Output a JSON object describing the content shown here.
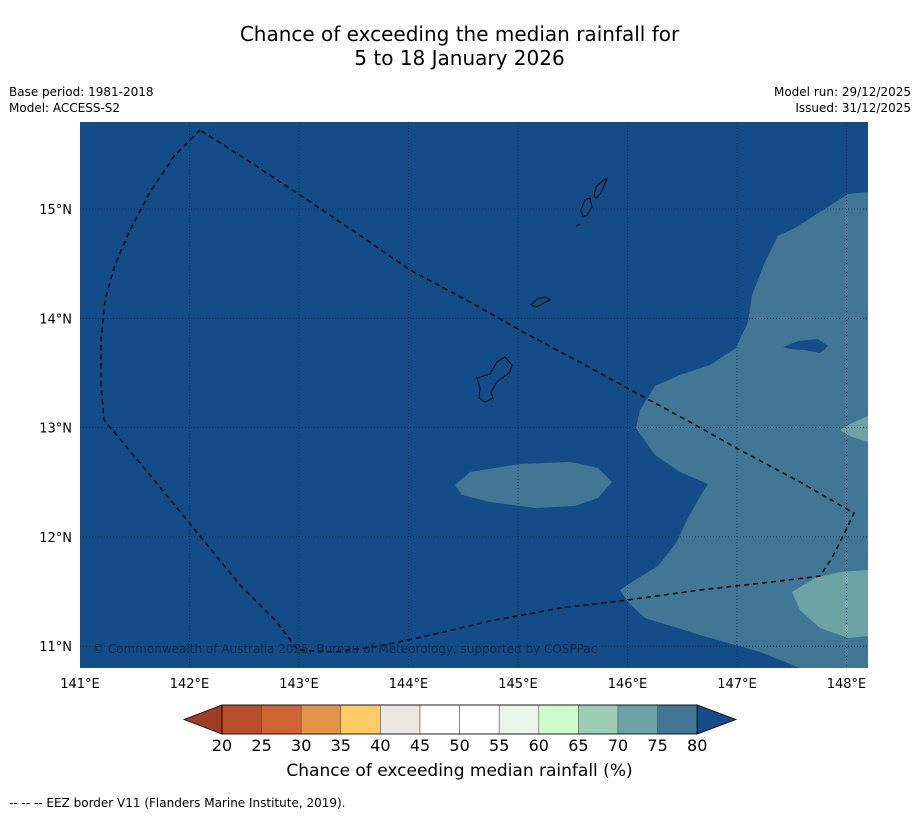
{
  "title": {
    "line1": "Chance of exceeding the median rainfall for",
    "line2": "5 to 18 January 2026"
  },
  "meta": {
    "base_period": "Base period: 1981-2018",
    "model": "Model: ACCESS-S2",
    "model_run": "Model run: 29/12/2025",
    "issued": "Issued: 31/12/2025"
  },
  "map": {
    "lon_range": [
      141.0,
      148.2
    ],
    "lat_range": [
      10.8,
      15.8
    ],
    "lon_ticks": [
      "141°E",
      "142°E",
      "143°E",
      "144°E",
      "145°E",
      "146°E",
      "147°E",
      "148°E"
    ],
    "lat_ticks": [
      "15°N",
      "14°N",
      "13°N",
      "12°N",
      "11°N"
    ],
    "copyright": "© Commonwealth of Australia 2025, Bureau of Meteorology, supported by COSPPac",
    "colors": {
      "ocean_80": "#144c87",
      "band_75": "#417795",
      "band_70": "#6ea3a5"
    }
  },
  "colorbar": {
    "ticks": [
      "20",
      "25",
      "30",
      "35",
      "40",
      "45",
      "50",
      "55",
      "60",
      "65",
      "70",
      "75",
      "80"
    ],
    "colors": [
      "#a13d22",
      "#b84f2c",
      "#ce6431",
      "#e0944a",
      "#fdcc66",
      "#ebe7e3",
      "#ffffff",
      "#ffffff",
      "#e8f5e8",
      "#ccfdcb",
      "#9ccdb6",
      "#6ea3a5",
      "#417795",
      "#144c87"
    ],
    "label": "Chance of exceeding median rainfall (%)"
  },
  "footer": "--  --  -- EEZ border V11 (Flanders Marine Institute, 2019)."
}
